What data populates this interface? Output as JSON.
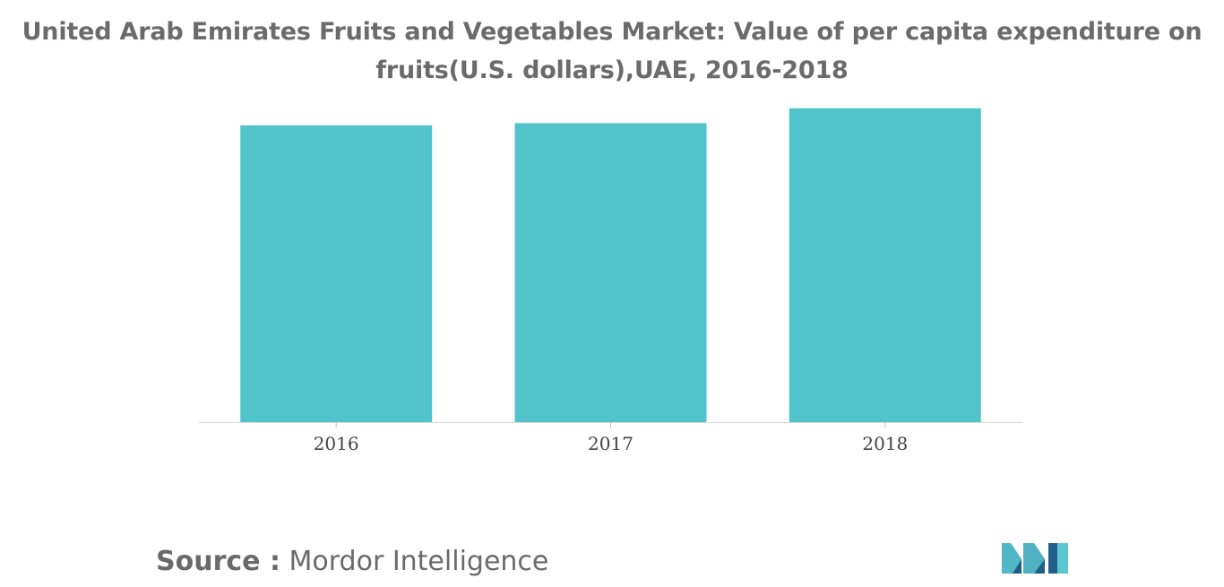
{
  "title_line1": "United Arab Emirates Fruits and Vegetables Market: Value of per capita expenditure on",
  "title_line2": "fruits(U.S. dollars),UAE, 2016-2018",
  "source": {
    "label": "Source :",
    "name": "Mordor Intelligence"
  },
  "colors": {
    "bar": "#51c3ca",
    "title": "#6b6b6b",
    "tick": "#444444",
    "logo_dark": "#1f5f8a",
    "logo_light": "#5bc6cf"
  },
  "chart_data": {
    "type": "bar",
    "categories": [
      "2016",
      "2017",
      "2018"
    ],
    "values": [
      200,
      201.5,
      211.5
    ],
    "ylim": [
      0,
      215
    ],
    "xlabel": "",
    "ylabel": "",
    "grid": false,
    "legend": "none"
  }
}
